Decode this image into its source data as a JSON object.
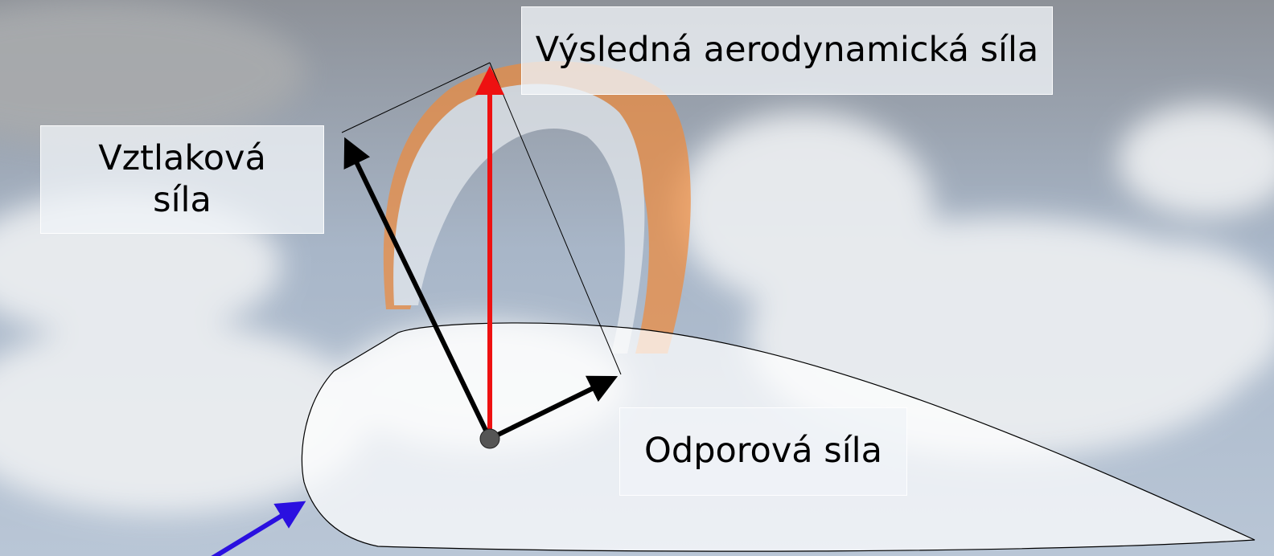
{
  "labels": {
    "resultant": "Výsledná aerodynamická síla",
    "lift": "Vztlaková síla",
    "drag": "Odporová síla"
  }
}
